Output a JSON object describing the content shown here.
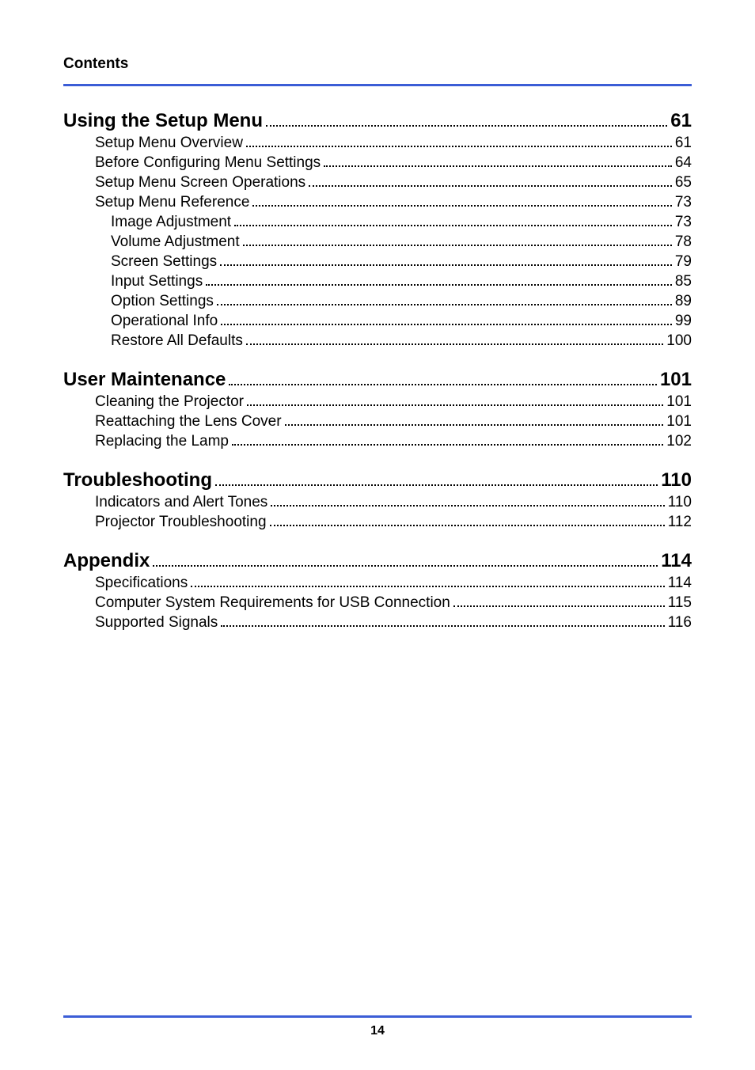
{
  "header": {
    "title": "Contents"
  },
  "footer": {
    "page_number": "14"
  },
  "colors": {
    "rule": "#3b5dd6",
    "text": "#000000",
    "background": "#ffffff"
  },
  "toc": [
    {
      "label": "Using the Setup Menu",
      "page": "61",
      "level": 1,
      "children": [
        {
          "label": "Setup Menu Overview",
          "page": "61",
          "level": 2
        },
        {
          "label": "Before Configuring Menu Settings",
          "page": "64",
          "level": 2
        },
        {
          "label": "Setup Menu Screen Operations",
          "page": "65",
          "level": 2
        },
        {
          "label": "Setup Menu Reference",
          "page": "73",
          "level": 2
        },
        {
          "label": "Image Adjustment",
          "page": "73",
          "level": 3
        },
        {
          "label": "Volume Adjustment",
          "page": "78",
          "level": 3
        },
        {
          "label": "Screen Settings",
          "page": "79",
          "level": 3
        },
        {
          "label": "Input Settings",
          "page": "85",
          "level": 3
        },
        {
          "label": "Option Settings",
          "page": "89",
          "level": 3
        },
        {
          "label": "Operational Info",
          "page": "99",
          "level": 3
        },
        {
          "label": "Restore All Defaults",
          "page": "100",
          "level": 3
        }
      ]
    },
    {
      "label": "User Maintenance",
      "page": "101",
      "level": 1,
      "children": [
        {
          "label": "Cleaning the Projector",
          "page": "101",
          "level": 2
        },
        {
          "label": "Reattaching the Lens Cover",
          "page": "101",
          "level": 2
        },
        {
          "label": "Replacing the Lamp",
          "page": "102",
          "level": 2
        }
      ]
    },
    {
      "label": "Troubleshooting",
      "page": "110",
      "level": 1,
      "children": [
        {
          "label": "Indicators and Alert Tones",
          "page": "110",
          "level": 2
        },
        {
          "label": "Projector Troubleshooting",
          "page": "112",
          "level": 2
        }
      ]
    },
    {
      "label": "Appendix",
      "page": "114",
      "level": 1,
      "children": [
        {
          "label": "Specifications",
          "page": "114",
          "level": 2
        },
        {
          "label": "Computer System Requirements for USB Connection",
          "page": "115",
          "level": 2
        },
        {
          "label": "Supported Signals",
          "page": "116",
          "level": 2
        }
      ]
    }
  ]
}
